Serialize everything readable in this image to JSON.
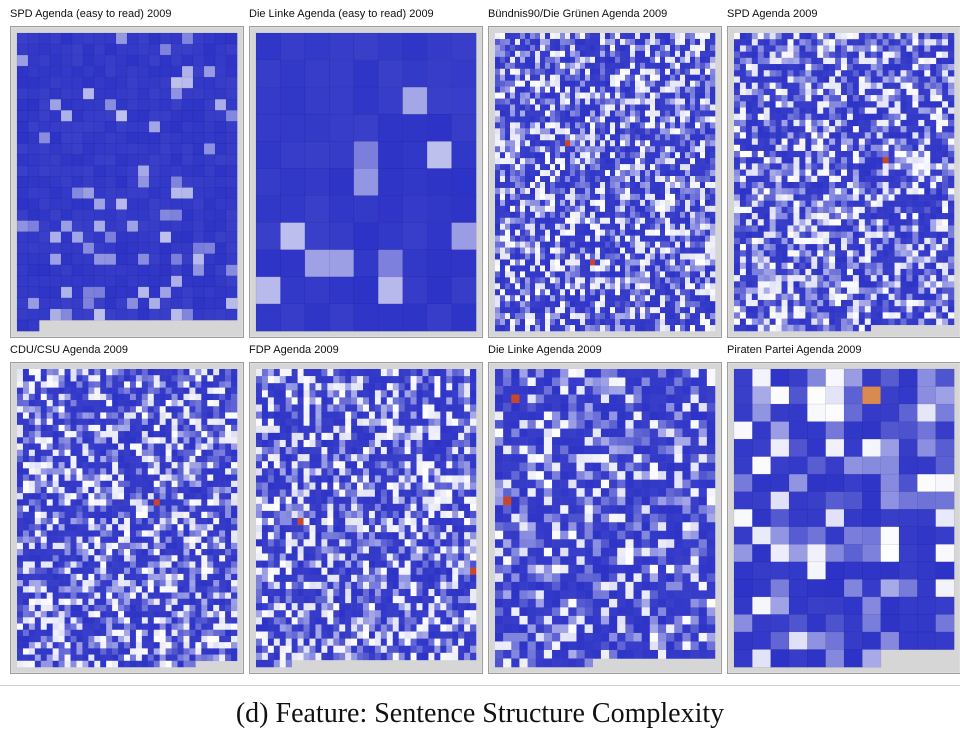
{
  "figure": {
    "caption": "(d) Feature: Sentence Structure Complexity"
  },
  "chart_data": [
    {
      "type": "heatmap",
      "title": "SPD Agenda (easy to read) 2009",
      "cols": 20,
      "rows": 27,
      "cell_count": 522,
      "complexity_level": "low",
      "highlighted_cells": [],
      "palette": [
        "#2d33c6",
        "#ffffff",
        "#c8462a"
      ]
    },
    {
      "type": "heatmap",
      "title": "Die Linke Agenda (easy to read) 2009",
      "cols": 9,
      "rows": 11,
      "cell_count": 99,
      "complexity_level": "low",
      "highlighted_cells": [],
      "palette": [
        "#2d33c6",
        "#ffffff",
        "#c8462a"
      ]
    },
    {
      "type": "heatmap",
      "title": "Bündnis90/Die Grünen Agenda 2009",
      "cols": 44,
      "rows": 50,
      "cell_count": 2200,
      "complexity_level": "high",
      "highlighted_cells": [
        [
          14,
          18
        ],
        [
          19,
          38
        ],
        [
          44,
          3
        ]
      ],
      "palette": [
        "#2d33c6",
        "#ffffff",
        "#c8462a"
      ]
    },
    {
      "type": "heatmap",
      "title": "SPD Agenda 2009",
      "cols": 37,
      "rows": 48,
      "cell_count": 1762,
      "complexity_level": "high",
      "highlighted_cells": [
        [
          25,
          20
        ]
      ],
      "palette": [
        "#2d33c6",
        "#ffffff",
        "#c8462a"
      ]
    },
    {
      "type": "heatmap",
      "title": "CDU/CSU Agenda 2009",
      "cols": 37,
      "rows": 48,
      "cell_count": 1769,
      "complexity_level": "high",
      "highlighted_cells": [
        [
          23,
          21
        ]
      ],
      "palette": [
        "#2d33c6",
        "#ffffff",
        "#c8462a"
      ]
    },
    {
      "type": "heatmap",
      "title": "FDP Agenda 2009",
      "cols": 37,
      "rows": 42,
      "cell_count": 1523,
      "complexity_level": "high",
      "highlighted_cells": [
        [
          7,
          21
        ],
        [
          36,
          28
        ]
      ],
      "palette": [
        "#2d33c6",
        "#ffffff",
        "#c8462a"
      ]
    },
    {
      "type": "heatmap",
      "title": "Die Linke Agenda 2009",
      "cols": 27,
      "rows": 35,
      "cell_count": 930,
      "complexity_level": "medium",
      "highlighted_cells": [
        [
          2,
          3
        ],
        [
          1,
          15
        ]
      ],
      "palette": [
        "#2d33c6",
        "#ffffff",
        "#c8462a"
      ]
    },
    {
      "type": "heatmap",
      "title": "Piraten Partei Agenda 2009",
      "cols": 12,
      "rows": 17,
      "cell_count": 200,
      "complexity_level": "medium",
      "highlighted_cells": [
        [
          7,
          1
        ]
      ],
      "palette": [
        "#2d33c6",
        "#ffffff",
        "#d98a50"
      ]
    }
  ]
}
